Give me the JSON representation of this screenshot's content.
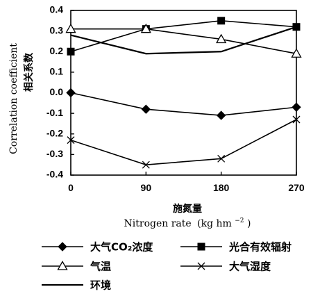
{
  "chart_data": {
    "type": "line",
    "x": [
      0,
      90,
      180,
      270
    ],
    "xticks": [
      "0",
      "90",
      "180",
      "270"
    ],
    "yticks": [
      "0.4",
      "0.3",
      "0.2",
      "0.1",
      "0.0",
      "-0.1",
      "-0.2",
      "-0.3",
      "-0.4"
    ],
    "ytick_values": [
      0.4,
      0.3,
      0.2,
      0.1,
      0.0,
      -0.1,
      -0.2,
      -0.3,
      -0.4
    ],
    "xlim": [
      0,
      270
    ],
    "ylim": [
      -0.4,
      0.4
    ],
    "xlabel_cn": "施氮量",
    "xlabel_en_prefix": "Nitrogen rate",
    "xlabel_en_unit": "(kg hm",
    "xlabel_en_exp": "−2",
    "xlabel_en_close": ")",
    "ylabel_en": "Correlation coefficient",
    "ylabel_cn": "相关系数",
    "series": [
      {
        "name": "大气CO₂浓度",
        "marker": "diamond",
        "values": [
          0.0,
          -0.08,
          -0.11,
          -0.07
        ]
      },
      {
        "name": "光合有效辐射",
        "marker": "square",
        "values": [
          0.2,
          0.31,
          0.35,
          0.32
        ]
      },
      {
        "name": "气温",
        "marker": "triangle",
        "values": [
          0.31,
          0.31,
          0.26,
          0.19
        ]
      },
      {
        "name": "大气湿度",
        "marker": "x",
        "values": [
          -0.23,
          -0.35,
          -0.32,
          -0.13
        ]
      },
      {
        "name": "环境",
        "marker": "none",
        "values": [
          0.28,
          0.19,
          0.2,
          0.32
        ]
      }
    ],
    "grid": false,
    "legend_position": "bottom"
  }
}
